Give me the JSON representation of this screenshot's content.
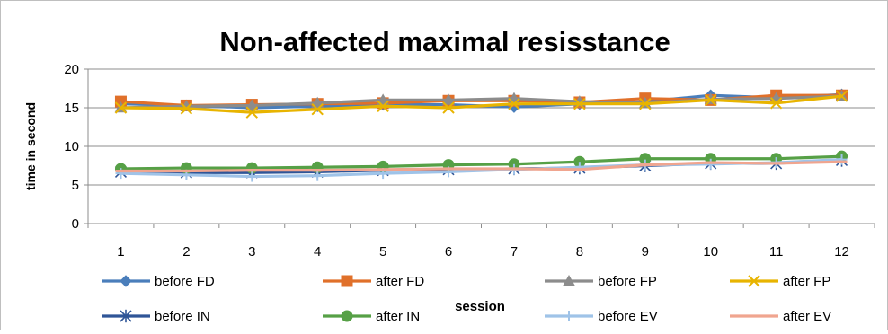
{
  "chart_data": {
    "type": "line",
    "title": "Non-affected maximal resisstance",
    "xlabel": "session",
    "ylabel": "time in second",
    "x": [
      1,
      2,
      3,
      4,
      5,
      6,
      7,
      8,
      9,
      10,
      11,
      12
    ],
    "ylim": [
      0,
      20
    ],
    "yticks": [
      0,
      5,
      10,
      15,
      20
    ],
    "grid": "horizontal",
    "legend_position": "bottom",
    "series": [
      {
        "name": "before FD",
        "color": "#4a7ebb",
        "marker": "diamond",
        "values": [
          15.5,
          15.3,
          15.0,
          15.2,
          15.4,
          15.4,
          15.1,
          15.5,
          15.8,
          16.6,
          16.3,
          16.7
        ]
      },
      {
        "name": "after FD",
        "color": "#e0702a",
        "marker": "square",
        "values": [
          15.8,
          15.3,
          15.4,
          15.5,
          15.6,
          15.9,
          15.9,
          15.7,
          16.2,
          16.0,
          16.6,
          16.6
        ]
      },
      {
        "name": "before FP",
        "color": "#8c8c8c",
        "marker": "triangle",
        "values": [
          15.0,
          15.2,
          15.3,
          15.6,
          16.0,
          16.0,
          16.2,
          15.8,
          15.6,
          16.1,
          16.2,
          16.5
        ]
      },
      {
        "name": "after FP",
        "color": "#e8b400",
        "marker": "x",
        "values": [
          15.0,
          14.9,
          14.4,
          14.8,
          15.2,
          15.0,
          15.5,
          15.5,
          15.5,
          16.0,
          15.6,
          16.5
        ]
      },
      {
        "name": "before IN",
        "color": "#2f5597",
        "marker": "asterisk",
        "values": [
          6.7,
          6.6,
          6.6,
          6.7,
          6.9,
          7.0,
          7.1,
          7.2,
          7.5,
          7.8,
          7.8,
          8.2
        ]
      },
      {
        "name": "after IN",
        "color": "#56a046",
        "marker": "circle",
        "values": [
          7.1,
          7.2,
          7.2,
          7.3,
          7.4,
          7.6,
          7.7,
          8.0,
          8.4,
          8.4,
          8.4,
          8.7
        ]
      },
      {
        "name": "before EV",
        "color": "#9fc3e8",
        "marker": "plus",
        "values": [
          6.5,
          6.3,
          6.1,
          6.2,
          6.5,
          6.7,
          7.0,
          7.3,
          7.6,
          7.7,
          7.9,
          8.3
        ]
      },
      {
        "name": "after EV",
        "color": "#f0a58f",
        "marker": "dash",
        "values": [
          6.8,
          6.8,
          6.9,
          6.9,
          7.0,
          7.1,
          7.1,
          7.0,
          7.6,
          7.9,
          7.8,
          8.0
        ]
      }
    ]
  }
}
